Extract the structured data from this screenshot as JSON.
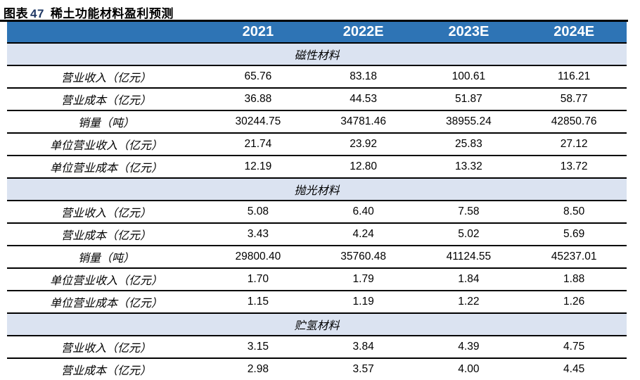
{
  "title": {
    "prefix": "图表",
    "number": "47",
    "name": "稀土功能材料盈利预测"
  },
  "colors": {
    "header_bg": "#2E74B5",
    "band_bg": "#DBE3F1",
    "title_number": "#1F3864",
    "rule": "#000000"
  },
  "table": {
    "columns": [
      "",
      "2021",
      "2022E",
      "2023E",
      "2024E"
    ],
    "sections": [
      {
        "name": "磁性材料",
        "rows": [
          {
            "label": "营业收入（亿元）",
            "values": [
              "65.76",
              "83.18",
              "100.61",
              "116.21"
            ]
          },
          {
            "label": "营业成本（亿元）",
            "values": [
              "36.88",
              "44.53",
              "51.87",
              "58.77"
            ]
          },
          {
            "label": "销量（吨）",
            "values": [
              "30244.75",
              "34781.46",
              "38955.24",
              "42850.76"
            ]
          },
          {
            "label": "单位营业收入（亿元）",
            "values": [
              "21.74",
              "23.92",
              "25.83",
              "27.12"
            ]
          },
          {
            "label": "单位营业成本（亿元）",
            "values": [
              "12.19",
              "12.80",
              "13.32",
              "13.72"
            ]
          }
        ]
      },
      {
        "name": "抛光材料",
        "rows": [
          {
            "label": "营业收入（亿元）",
            "values": [
              "5.08",
              "6.40",
              "7.58",
              "8.50"
            ]
          },
          {
            "label": "营业成本（亿元）",
            "values": [
              "3.43",
              "4.24",
              "5.02",
              "5.69"
            ]
          },
          {
            "label": "销量（吨）",
            "values": [
              "29800.40",
              "35760.48",
              "41124.55",
              "45237.01"
            ]
          },
          {
            "label": "单位营业收入（亿元）",
            "values": [
              "1.70",
              "1.79",
              "1.84",
              "1.88"
            ]
          },
          {
            "label": "单位营业成本（亿元）",
            "values": [
              "1.15",
              "1.19",
              "1.22",
              "1.26"
            ]
          }
        ]
      },
      {
        "name": "贮氢材料",
        "rows": [
          {
            "label": "营业收入（亿元）",
            "values": [
              "3.15",
              "3.84",
              "4.39",
              "4.75"
            ]
          },
          {
            "label": "营业成本（亿元）",
            "values": [
              "2.98",
              "3.57",
              "4.00",
              "4.45"
            ]
          }
        ]
      }
    ]
  }
}
